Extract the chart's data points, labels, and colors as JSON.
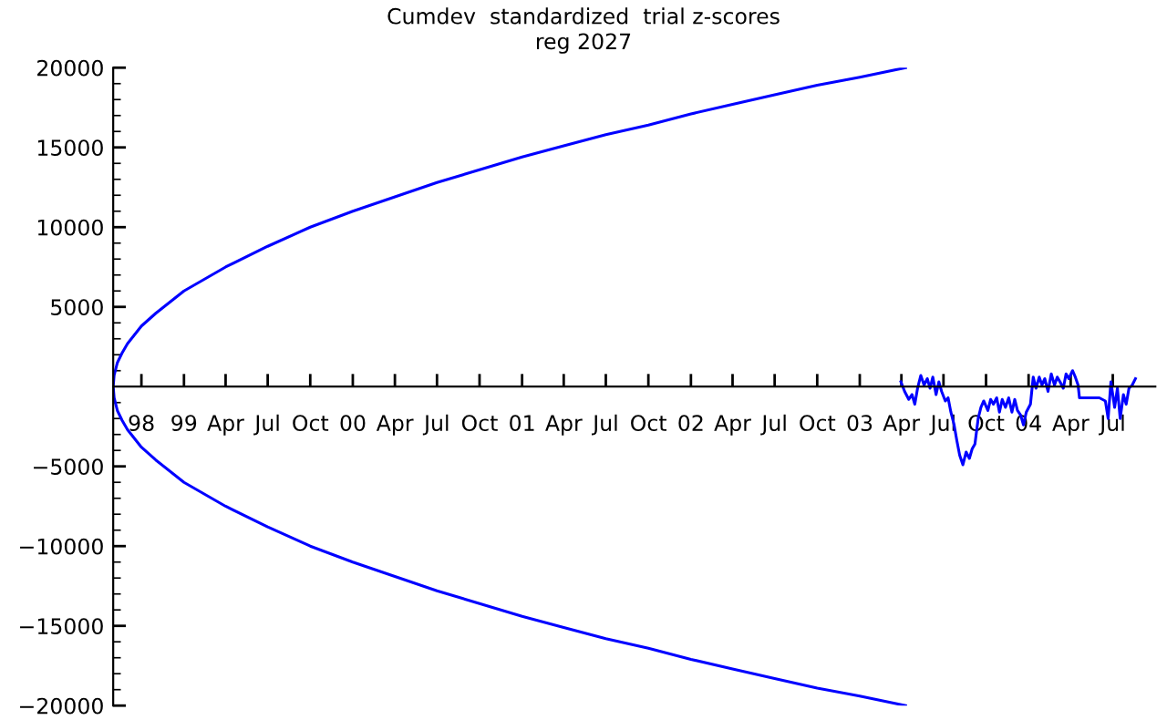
{
  "chart_data": {
    "type": "line",
    "title": "Cumdev  standardized  trial z-scores",
    "subtitle": "reg 2027",
    "xlim": [
      "1998-08-01",
      "2004-10-01"
    ],
    "xticks": [
      {
        "value": "1998-10-01",
        "label": "98"
      },
      {
        "value": "1999-01-01",
        "label": "99"
      },
      {
        "value": "1999-04-01",
        "label": "Apr"
      },
      {
        "value": "1999-07-01",
        "label": "Jul"
      },
      {
        "value": "1999-10-01",
        "label": "Oct"
      },
      {
        "value": "2000-01-01",
        "label": "00"
      },
      {
        "value": "2000-04-01",
        "label": "Apr"
      },
      {
        "value": "2000-07-01",
        "label": "Jul"
      },
      {
        "value": "2000-10-01",
        "label": "Oct"
      },
      {
        "value": "2001-01-01",
        "label": "01"
      },
      {
        "value": "2001-04-01",
        "label": "Apr"
      },
      {
        "value": "2001-07-01",
        "label": "Jul"
      },
      {
        "value": "2001-10-01",
        "label": "Oct"
      },
      {
        "value": "2002-01-01",
        "label": "02"
      },
      {
        "value": "2002-04-01",
        "label": "Apr"
      },
      {
        "value": "2002-07-01",
        "label": "Jul"
      },
      {
        "value": "2002-10-01",
        "label": "Oct"
      },
      {
        "value": "2003-01-01",
        "label": "03"
      },
      {
        "value": "2003-04-01",
        "label": "Apr"
      },
      {
        "value": "2003-07-01",
        "label": "Jul"
      },
      {
        "value": "2003-10-01",
        "label": "Oct"
      },
      {
        "value": "2004-01-01",
        "label": "04"
      },
      {
        "value": "2004-04-01",
        "label": "Apr"
      },
      {
        "value": "2004-07-01",
        "label": "Jul"
      }
    ],
    "ylim": [
      -20000,
      20000
    ],
    "yticks": [
      -20000,
      {
        "value": -19000,
        "label": null
      },
      {
        "value": -18000,
        "label": null
      },
      {
        "value": -17000,
        "label": null
      },
      {
        "value": -16000,
        "label": null
      },
      -15000,
      {
        "value": -14000,
        "label": null
      },
      {
        "value": -13000,
        "label": null
      },
      {
        "value": -12000,
        "label": null
      },
      {
        "value": -11000,
        "label": null
      },
      -10000,
      {
        "value": -9000,
        "label": null
      },
      {
        "value": -8000,
        "label": null
      },
      {
        "value": -7000,
        "label": null
      },
      {
        "value": -6000,
        "label": null
      },
      -5000,
      {
        "value": -4000,
        "label": null
      },
      {
        "value": -3000,
        "label": null
      },
      {
        "value": -2000,
        "label": null
      },
      {
        "value": -1000,
        "label": null
      },
      {
        "value": 1000,
        "label": null
      },
      {
        "value": 2000,
        "label": null
      },
      {
        "value": 3000,
        "label": null
      },
      {
        "value": 4000,
        "label": null
      },
      5000,
      {
        "value": 6000,
        "label": null
      },
      {
        "value": 7000,
        "label": null
      },
      {
        "value": 8000,
        "label": null
      },
      {
        "value": 9000,
        "label": null
      },
      10000,
      {
        "value": 11000,
        "label": null
      },
      {
        "value": 12000,
        "label": null
      },
      {
        "value": 13000,
        "label": null
      },
      {
        "value": 14000,
        "label": null
      },
      15000,
      {
        "value": 16000,
        "label": null
      },
      {
        "value": 17000,
        "label": null
      },
      {
        "value": 18000,
        "label": null
      },
      {
        "value": 19000,
        "label": null
      },
      20000
    ],
    "marker": "none",
    "line_style": "solid",
    "series": [
      {
        "color": "#0000ff",
        "x": [
          "2003-04-10",
          "2003-01-01",
          "2002-10-01",
          "2002-07-01",
          "2002-04-01",
          "2002-01-01",
          "2001-10-01",
          "2001-07-01",
          "2001-04-01",
          "2001-01-01",
          "2000-10-01",
          "2000-07-01",
          "2000-04-01",
          "2000-01-01",
          "1999-10-01",
          "1999-07-01",
          "1999-04-01",
          "1999-01-01",
          "1998-11-01",
          "1998-10-01",
          "1998-09-01",
          "1998-08-20",
          "1998-08-10",
          "1998-08-03",
          "1998-08-01",
          "1998-08-03",
          "1998-08-10",
          "1998-08-20",
          "1998-09-01",
          "1998-10-01",
          "1998-11-01",
          "1999-01-01",
          "1999-04-01",
          "1999-07-01",
          "1999-10-01",
          "2000-01-01",
          "2000-04-01",
          "2000-07-01",
          "2000-10-01",
          "2001-01-01",
          "2001-04-01",
          "2001-07-01",
          "2001-10-01",
          "2002-01-01",
          "2002-04-01",
          "2002-07-01",
          "2002-10-01",
          "2003-01-01",
          "2003-04-10"
        ],
        "values": [
          -20000,
          -19400,
          -18900,
          -18300,
          -17700,
          -17100,
          -16400,
          -15800,
          -15100,
          -14400,
          -13600,
          -12800,
          -11900,
          -11000,
          -10000,
          -8800,
          -7500,
          -6000,
          -4600,
          -3800,
          -2700,
          -2100,
          -1500,
          -700,
          0,
          700,
          1500,
          2100,
          2700,
          3800,
          4600,
          6000,
          7500,
          8800,
          10000,
          11000,
          11900,
          12800,
          13600,
          14400,
          15100,
          15800,
          16400,
          17100,
          17700,
          18300,
          18900,
          19400,
          20000
        ]
      },
      {
        "color": "#0000ff",
        "x": [
          "2003-03-31",
          "2003-04-08",
          "2003-04-17",
          "2003-04-24",
          "2003-04-30",
          "2003-05-06",
          "2003-05-13",
          "2003-05-20",
          "2003-05-27",
          "2003-06-02",
          "2003-06-08",
          "2003-06-15",
          "2003-06-21",
          "2003-06-27",
          "2003-07-05",
          "2003-07-11",
          "2003-07-17",
          "2003-07-24",
          "2003-07-30",
          "2003-08-05",
          "2003-08-12",
          "2003-08-19",
          "2003-08-26",
          "2003-09-01",
          "2003-09-07",
          "2003-09-14",
          "2003-09-20",
          "2003-09-26",
          "2003-10-05",
          "2003-10-11",
          "2003-10-17",
          "2003-10-24",
          "2003-10-30",
          "2003-11-05",
          "2003-11-12",
          "2003-11-19",
          "2003-11-26",
          "2003-12-02",
          "2003-12-08",
          "2003-12-15",
          "2003-12-21",
          "2003-12-27",
          "2004-01-05",
          "2004-01-11",
          "2004-01-17",
          "2004-01-24",
          "2004-01-30",
          "2004-02-05",
          "2004-02-12",
          "2004-02-19",
          "2004-02-26",
          "2004-03-03",
          "2004-03-09",
          "2004-03-16",
          "2004-03-22",
          "2004-03-28",
          "2004-04-05",
          "2004-04-11",
          "2004-04-17",
          "2004-04-20",
          "2004-06-02",
          "2004-06-15",
          "2004-06-21",
          "2004-06-27",
          "2004-07-05",
          "2004-07-11",
          "2004-07-17",
          "2004-07-24",
          "2004-07-30",
          "2004-08-05",
          "2004-08-12",
          "2004-08-19"
        ],
        "values": [
          300,
          -300,
          -800,
          -500,
          -1100,
          -100,
          700,
          100,
          500,
          -100,
          600,
          -500,
          300,
          -300,
          -900,
          -700,
          -1600,
          -2400,
          -3400,
          -4300,
          -4900,
          -4100,
          -4500,
          -3900,
          -3600,
          -2000,
          -1300,
          -900,
          -1500,
          -800,
          -1100,
          -700,
          -1600,
          -800,
          -1300,
          -700,
          -1600,
          -800,
          -1500,
          -1800,
          -2400,
          -1600,
          -1100,
          600,
          -100,
          600,
          100,
          500,
          -300,
          800,
          100,
          600,
          300,
          -100,
          800,
          500,
          1000,
          600,
          100,
          -700,
          -700,
          -900,
          -2000,
          300,
          -1300,
          -100,
          -2000,
          -500,
          -1100,
          -100,
          100,
          500
        ]
      }
    ]
  }
}
